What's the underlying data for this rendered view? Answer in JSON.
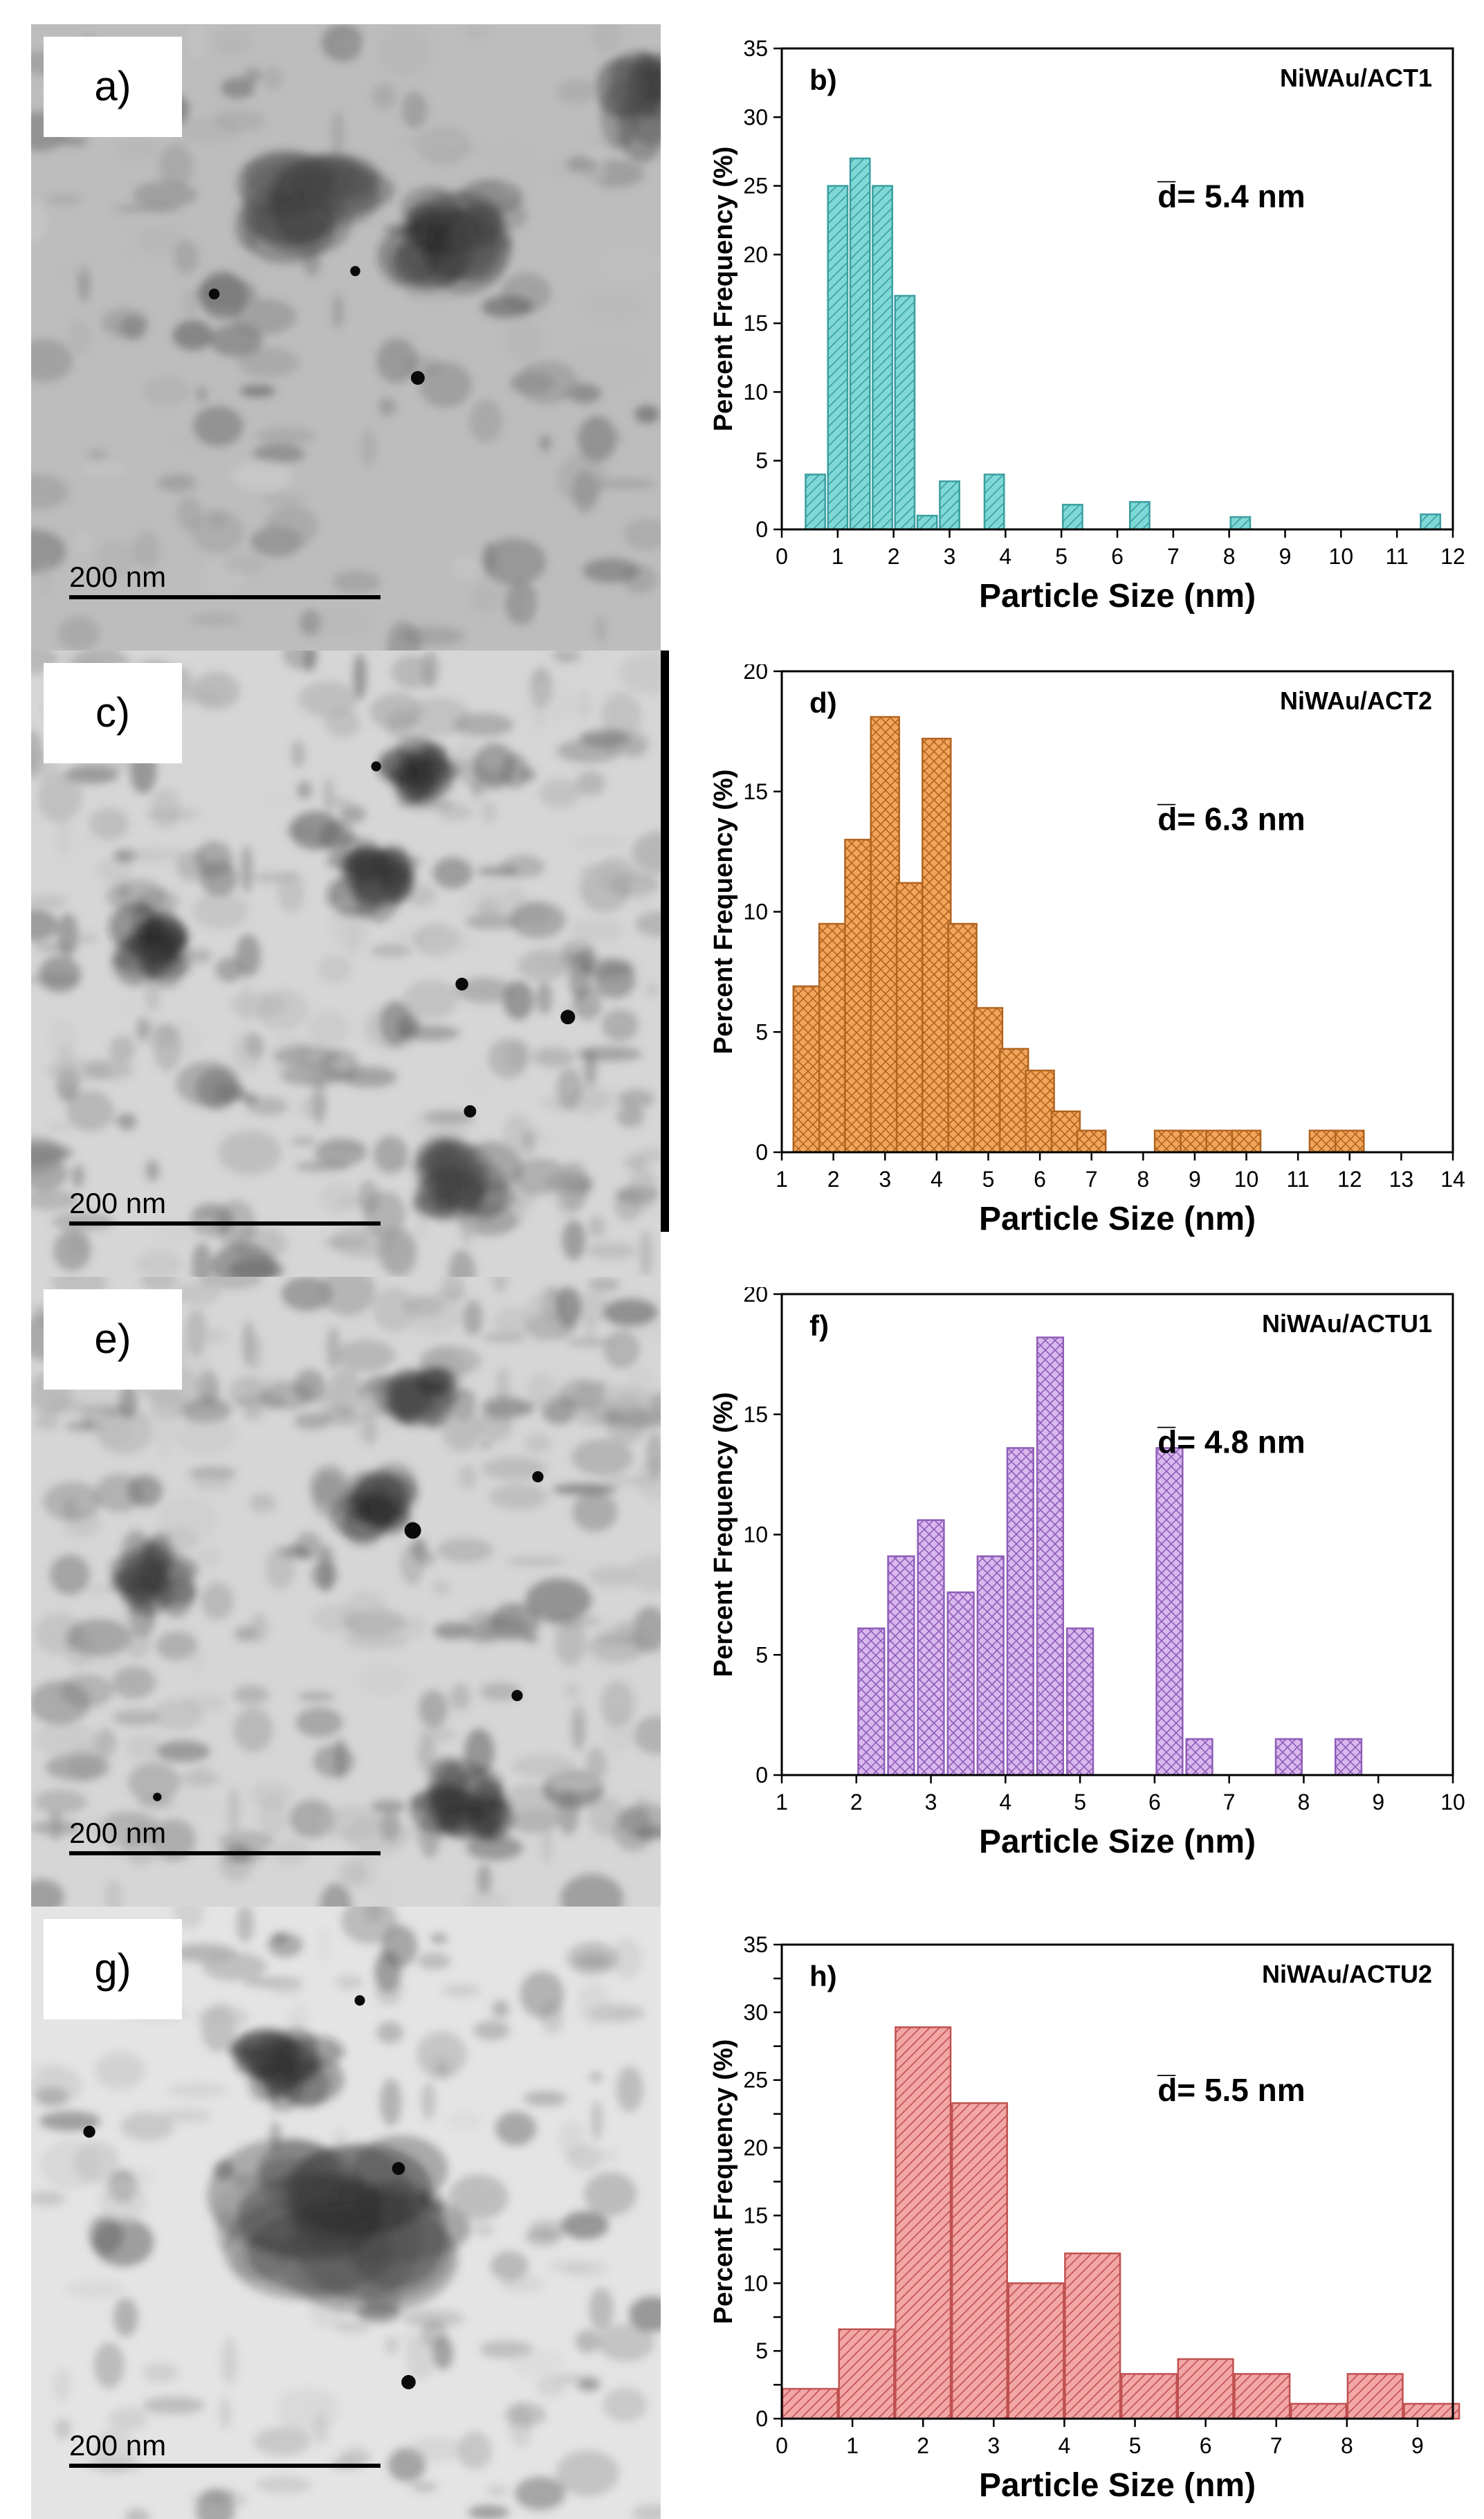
{
  "panels": [
    {
      "label": "a)",
      "scalebar": "200 nm",
      "style": "dark-cluster"
    },
    {
      "label": "c)",
      "scalebar": "200 nm",
      "style": "mottled"
    },
    {
      "label": "e)",
      "scalebar": "200 nm",
      "style": "mottled"
    },
    {
      "label": "g)",
      "scalebar": "200 nm",
      "style": "big-cluster"
    }
  ],
  "chart_data": [
    {
      "type": "bar",
      "panel_label": "b)",
      "sample": "NiWAu/ACT1",
      "annotation": "d̅= 5.4 nm",
      "xlabel": "Particle Size (nm)",
      "ylabel": "Percent Frequency (%)",
      "xlim": [
        0,
        12
      ],
      "ylim": [
        0,
        35
      ],
      "xticks": [
        0,
        1,
        2,
        3,
        4,
        5,
        6,
        7,
        8,
        9,
        10,
        11,
        12
      ],
      "yticks": [
        0,
        5,
        10,
        15,
        20,
        25,
        30,
        35
      ],
      "bar_width": 0.35,
      "bin_centers": [
        0.6,
        1.0,
        1.4,
        1.8,
        2.2,
        2.6,
        3.0,
        3.8,
        5.2,
        6.4,
        8.2,
        11.6
      ],
      "values": [
        4,
        25,
        27,
        25,
        17,
        1,
        3.5,
        4,
        1.8,
        2,
        0.9,
        1.1
      ],
      "color": "#7fd8d6",
      "edge": "#3a9ea0",
      "hatch": "diag"
    },
    {
      "type": "bar",
      "panel_label": "d)",
      "sample": "NiWAu/ACT2",
      "annotation": "d̅= 6.3 nm",
      "xlabel": "Particle Size (nm)",
      "ylabel": "Percent Frequency (%)",
      "xlim": [
        1,
        14
      ],
      "ylim": [
        0,
        20
      ],
      "xticks": [
        1,
        2,
        3,
        4,
        5,
        6,
        7,
        8,
        9,
        10,
        11,
        12,
        13,
        14
      ],
      "yticks": [
        0,
        5,
        10,
        15,
        20
      ],
      "bar_width": 0.55,
      "bin_centers": [
        1.5,
        2.0,
        2.5,
        3.0,
        3.5,
        4.0,
        4.5,
        5.0,
        5.5,
        6.0,
        6.5,
        7.0,
        8.5,
        9.0,
        9.5,
        10.0,
        11.5,
        12.0
      ],
      "values": [
        6.9,
        9.5,
        13.0,
        18.1,
        11.2,
        17.2,
        9.5,
        6.0,
        4.3,
        3.4,
        1.7,
        0.9,
        0.9,
        0.9,
        0.9,
        0.9,
        0.9,
        0.9
      ],
      "color": "#f2a45a",
      "edge": "#b0641f",
      "hatch": "cross"
    },
    {
      "type": "bar",
      "panel_label": "f)",
      "sample": "NiWAu/ACTU1",
      "annotation": "d̅= 4.8 nm",
      "xlabel": "Particle Size (nm)",
      "ylabel": "Percent Frequency (%)",
      "xlim": [
        1,
        10
      ],
      "ylim": [
        0,
        20
      ],
      "xticks": [
        1,
        2,
        3,
        4,
        5,
        6,
        7,
        8,
        9,
        10
      ],
      "yticks": [
        0,
        5,
        10,
        15,
        20
      ],
      "bar_width": 0.35,
      "bin_centers": [
        2.2,
        2.6,
        3.0,
        3.4,
        3.8,
        4.2,
        4.6,
        5.0,
        6.2,
        6.6,
        7.8,
        8.6
      ],
      "values": [
        6.1,
        9.1,
        10.6,
        7.6,
        9.1,
        13.6,
        18.2,
        6.1,
        13.6,
        1.5,
        1.5,
        1.5
      ],
      "color": "#d9b8ee",
      "edge": "#8f5db8",
      "hatch": "cross"
    },
    {
      "type": "bar",
      "panel_label": "h)",
      "sample": "NiWAu/ACTU2",
      "annotation": "d̅= 5.5 nm",
      "xlabel": "Particle Size (nm)",
      "ylabel": "Percent Frequency (%)",
      "xlim": [
        0,
        9.5
      ],
      "ylim": [
        0,
        35
      ],
      "xticks": [
        0,
        1,
        2,
        3,
        4,
        5,
        6,
        7,
        8,
        9
      ],
      "yticks": [
        0,
        2.5,
        5,
        7.5,
        10,
        12.5,
        15,
        17.5,
        20,
        22.5,
        25,
        27.5,
        30,
        32.5,
        35
      ],
      "ytick_labels": [
        "0",
        "",
        "5",
        "",
        "10",
        "",
        "15",
        "",
        "20",
        "",
        "25",
        "",
        "30",
        "",
        "35"
      ],
      "bar_width": 0.78,
      "bin_centers": [
        0.4,
        1.2,
        2.0,
        2.8,
        3.6,
        4.4,
        5.2,
        6.0,
        6.8,
        7.6,
        8.4,
        9.2
      ],
      "values": [
        2.2,
        6.6,
        28.9,
        23.3,
        10.0,
        12.2,
        3.3,
        4.4,
        3.3,
        1.1,
        3.3,
        1.1
      ],
      "color": "#f2a6a6",
      "edge": "#c05050",
      "hatch": "diag"
    }
  ]
}
